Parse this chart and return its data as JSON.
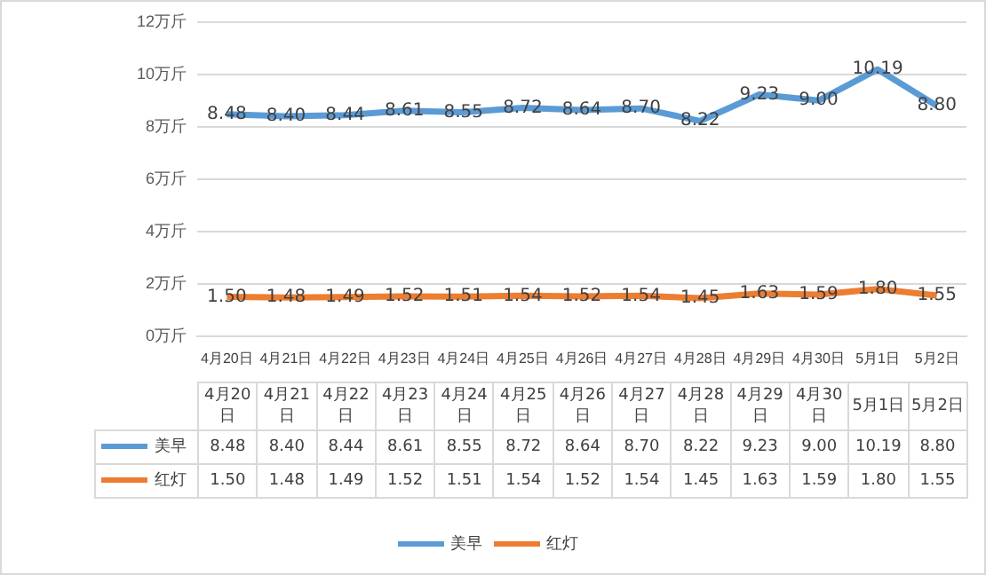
{
  "chart_data": {
    "type": "line",
    "categories": [
      "4月20日",
      "4月21日",
      "4月22日",
      "4月23日",
      "4月24日",
      "4月25日",
      "4月26日",
      "4月27日",
      "4月28日",
      "4月29日",
      "4月30日",
      "5月1日",
      "5月2日"
    ],
    "series": [
      {
        "name": "美早",
        "color": "#5b9bd5",
        "values": [
          8.48,
          8.4,
          8.44,
          8.61,
          8.55,
          8.72,
          8.64,
          8.7,
          8.22,
          9.23,
          9.0,
          10.19,
          8.8
        ],
        "value_labels": [
          "8.48",
          "8.40",
          "8.44",
          "8.61",
          "8.55",
          "8.72",
          "8.64",
          "8.70",
          "8.22",
          "9.23",
          "9.00",
          "10.19",
          "8.80"
        ]
      },
      {
        "name": "红灯",
        "color": "#ed7d31",
        "values": [
          1.5,
          1.48,
          1.49,
          1.52,
          1.51,
          1.54,
          1.52,
          1.54,
          1.45,
          1.63,
          1.59,
          1.8,
          1.55
        ],
        "value_labels": [
          "1.50",
          "1.48",
          "1.49",
          "1.52",
          "1.51",
          "1.54",
          "1.52",
          "1.54",
          "1.45",
          "1.63",
          "1.59",
          "1.80",
          "1.55"
        ]
      }
    ],
    "ylim": [
      0,
      12
    ],
    "yticks": [
      {
        "value": 0,
        "label": "0万斤"
      },
      {
        "value": 2,
        "label": "2万斤"
      },
      {
        "value": 4,
        "label": "4万斤"
      },
      {
        "value": 6,
        "label": "6万斤"
      },
      {
        "value": 8,
        "label": "8万斤"
      },
      {
        "value": 10,
        "label": "10万斤"
      },
      {
        "value": 12,
        "label": "12万斤"
      }
    ],
    "grid": "y",
    "legend": "bottom",
    "marker": "none",
    "line_style": "solid"
  }
}
